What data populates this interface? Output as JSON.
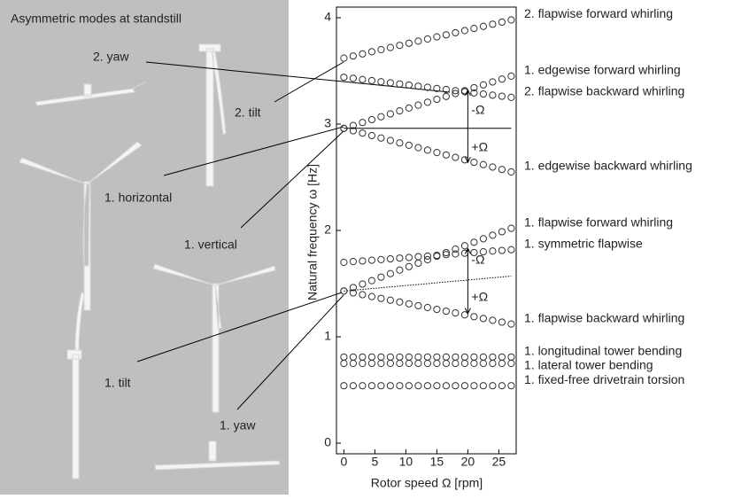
{
  "chart_data": {
    "type": "line",
    "panel_title": "Asymmetric modes at standstill",
    "mode_labels": [
      "2. yaw",
      "2. tilt",
      "1. horizontal",
      "1. vertical",
      "1. tilt",
      "1. yaw"
    ],
    "xlabel": "Rotor speed Ω [rpm]",
    "ylabel": "Natural frequency ω [Hz]",
    "xlim": [
      -1.2,
      27.8
    ],
    "ylim": [
      -0.1,
      4.1
    ],
    "xticks": [
      0,
      5,
      10,
      15,
      20,
      25
    ],
    "yticks": [
      0,
      1,
      2,
      3,
      4
    ],
    "annotations": [
      "-Ω",
      "+Ω",
      "-Ω",
      "+Ω"
    ],
    "x": [
      0,
      1.5,
      3,
      4.5,
      6,
      7.5,
      9,
      10.5,
      12,
      13.5,
      15,
      16.5,
      18,
      19.5,
      21,
      22.5,
      24,
      25.5,
      27
    ],
    "series": [
      {
        "name": "2. flapwise forward whirling",
        "color": "#333333",
        "marker": "circle",
        "values": [
          3.62,
          3.64,
          3.66,
          3.68,
          3.7,
          3.72,
          3.74,
          3.76,
          3.78,
          3.8,
          3.82,
          3.839,
          3.859,
          3.879,
          3.899,
          3.919,
          3.939,
          3.959,
          3.979
        ]
      },
      {
        "name": "1. edgewise forward whirling",
        "color": "#333333",
        "marker": "circle",
        "values": [
          2.96,
          2.987,
          3.015,
          3.042,
          3.069,
          3.096,
          3.124,
          3.151,
          3.178,
          3.205,
          3.233,
          3.26,
          3.287,
          3.314,
          3.342,
          3.369,
          3.396,
          3.423,
          3.451
        ]
      },
      {
        "name": "2. flapwise backward whirling",
        "color": "#333333",
        "marker": "circle",
        "values": [
          3.44,
          3.43,
          3.419,
          3.409,
          3.398,
          3.388,
          3.377,
          3.367,
          3.356,
          3.346,
          3.335,
          3.325,
          3.314,
          3.304,
          3.293,
          3.283,
          3.272,
          3.262,
          3.251
        ]
      },
      {
        "name": "1. edgewise backward whirling",
        "color": "#333333",
        "marker": "circle",
        "values": [
          2.96,
          2.937,
          2.915,
          2.892,
          2.869,
          2.846,
          2.823,
          2.801,
          2.778,
          2.755,
          2.732,
          2.71,
          2.687,
          2.664,
          2.641,
          2.619,
          2.596,
          2.573,
          2.55
        ]
      },
      {
        "name": "1. flapwise forward whirling",
        "color": "#333333",
        "marker": "circle",
        "values": [
          1.43,
          1.463,
          1.496,
          1.528,
          1.561,
          1.594,
          1.627,
          1.66,
          1.692,
          1.725,
          1.758,
          1.791,
          1.824,
          1.856,
          1.889,
          1.922,
          1.955,
          1.988,
          2.02
        ]
      },
      {
        "name": "1. symmetric flapwise",
        "color": "#333333",
        "marker": "circle",
        "values": [
          1.7,
          1.707,
          1.713,
          1.72,
          1.726,
          1.733,
          1.74,
          1.746,
          1.753,
          1.759,
          1.766,
          1.773,
          1.779,
          1.786,
          1.792,
          1.799,
          1.806,
          1.812,
          1.819
        ]
      },
      {
        "name": "1. flapwise backward whirling",
        "color": "#333333",
        "marker": "circle",
        "values": [
          1.43,
          1.413,
          1.396,
          1.378,
          1.361,
          1.344,
          1.327,
          1.31,
          1.292,
          1.275,
          1.258,
          1.241,
          1.224,
          1.206,
          1.189,
          1.172,
          1.155,
          1.138,
          1.12
        ]
      },
      {
        "name": "1. longitudinal tower bending",
        "color": "#333333",
        "marker": "circle",
        "values": [
          0.81,
          0.81,
          0.81,
          0.81,
          0.81,
          0.81,
          0.81,
          0.81,
          0.81,
          0.81,
          0.81,
          0.81,
          0.81,
          0.81,
          0.81,
          0.81,
          0.81,
          0.81,
          0.81
        ]
      },
      {
        "name": "1. lateral tower bending",
        "color": "#333333",
        "marker": "circle",
        "values": [
          0.75,
          0.75,
          0.75,
          0.75,
          0.75,
          0.75,
          0.75,
          0.75,
          0.75,
          0.75,
          0.75,
          0.75,
          0.75,
          0.75,
          0.75,
          0.75,
          0.75,
          0.75,
          0.75
        ]
      },
      {
        "name": "1. fixed-free drivetrain torsion",
        "color": "#333333",
        "marker": "circle",
        "values": [
          0.54,
          0.54,
          0.54,
          0.54,
          0.54,
          0.54,
          0.54,
          0.54,
          0.54,
          0.54,
          0.54,
          0.54,
          0.54,
          0.54,
          0.54,
          0.54,
          0.54,
          0.54,
          0.54
        ]
      },
      {
        "color": "#000000",
        "marker": "none",
        "dash": "solid",
        "values": [
          2.96,
          2.96,
          2.96,
          2.96,
          2.96,
          2.96,
          2.96,
          2.96,
          2.96,
          2.96,
          2.96,
          2.96,
          2.96,
          2.96,
          2.96,
          2.96,
          2.96,
          2.96,
          2.96
        ]
      },
      {
        "color": "#000000",
        "marker": "none",
        "dash": "dotted",
        "values": [
          1.43,
          1.438,
          1.446,
          1.453,
          1.461,
          1.469,
          1.477,
          1.485,
          1.492,
          1.5,
          1.508,
          1.516,
          1.524,
          1.531,
          1.539,
          1.547,
          1.555,
          1.563,
          1.57
        ]
      }
    ]
  }
}
